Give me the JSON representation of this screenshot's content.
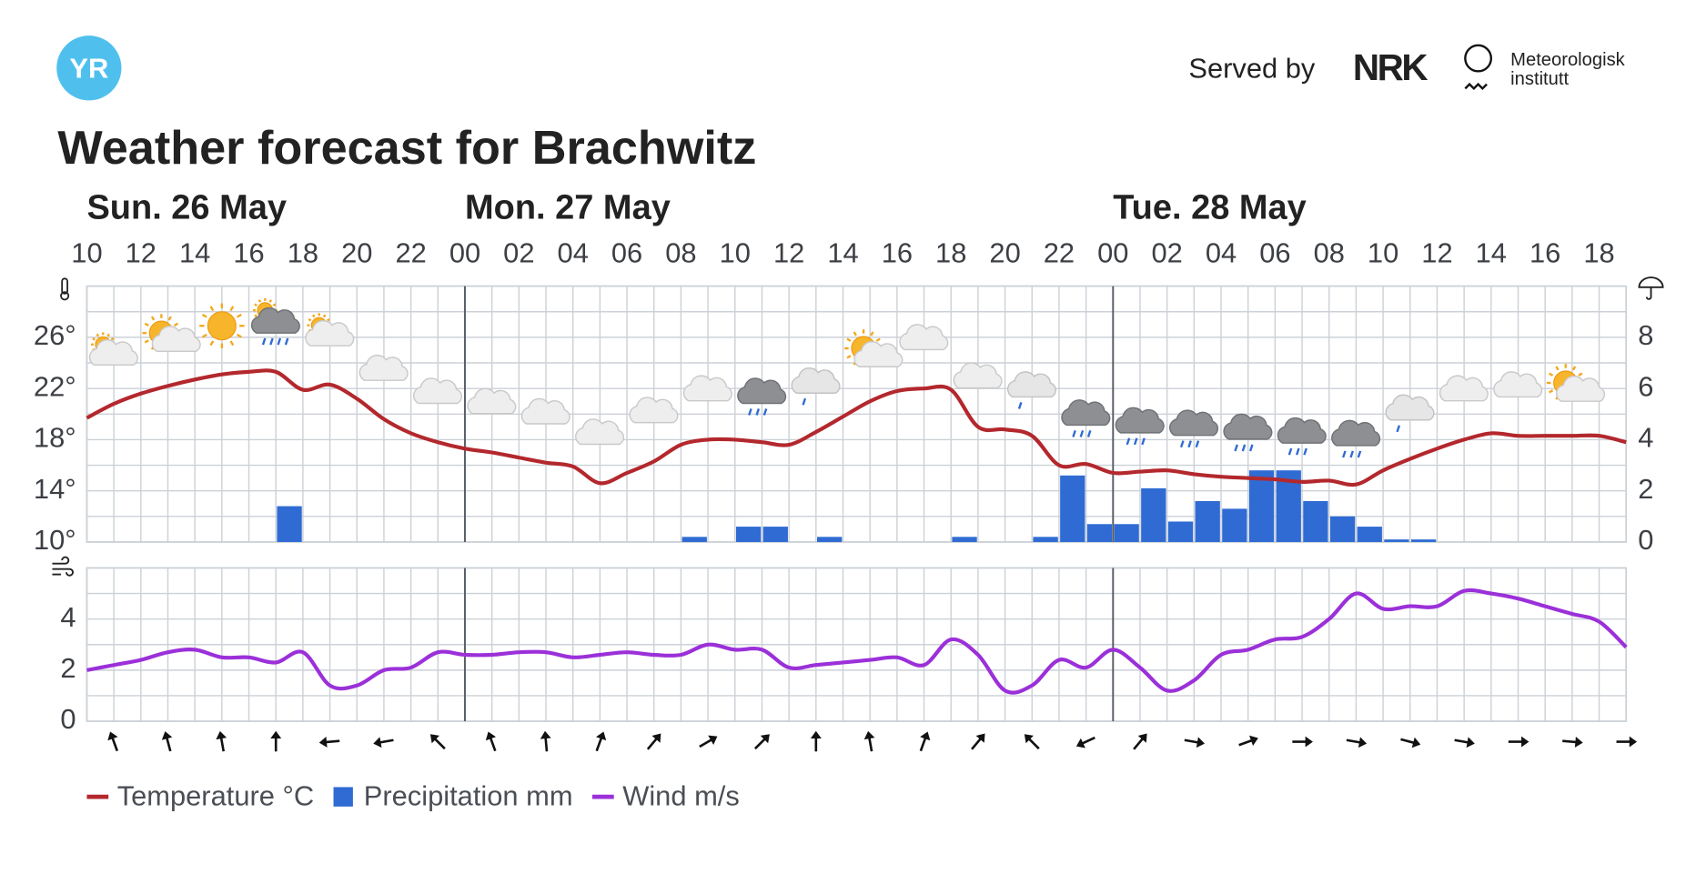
{
  "header": {
    "logo": "YR",
    "served_by": "Served by",
    "nrk": "NRK",
    "met": [
      "Meteorologisk",
      "institutt"
    ]
  },
  "chart_data": [
    {
      "type": "line",
      "title": "Weather forecast for Brachwitz",
      "days": [
        {
          "label": "Sun. 26 May",
          "index": 0
        },
        {
          "label": "Mon. 27 May",
          "index": 14
        },
        {
          "label": "Tue. 28 May",
          "index": 38
        }
      ],
      "categories": [
        "10",
        null,
        "12",
        null,
        "14",
        null,
        "16",
        null,
        "18",
        null,
        "20",
        null,
        "22",
        null,
        "00",
        null,
        "02",
        null,
        "04",
        null,
        "06",
        null,
        "08",
        null,
        "10",
        null,
        "12",
        null,
        "14",
        null,
        "16",
        null,
        "18",
        null,
        "20",
        null,
        "22",
        null,
        "00",
        null,
        "02",
        null,
        "04",
        null,
        "06",
        null,
        "08",
        null,
        "10",
        null,
        "12",
        null,
        "14",
        null,
        "16",
        null,
        "18",
        null
      ],
      "series": [
        {
          "name": "Temperature °C",
          "color": "#b3282d",
          "axis": "y",
          "values": [
            19.7,
            20.8,
            21.6,
            22.2,
            22.7,
            23.1,
            23.3,
            23.3,
            21.9,
            22.3,
            21.2,
            19.6,
            18.5,
            17.8,
            17.3,
            17.0,
            16.6,
            16.2,
            15.9,
            14.6,
            15.4,
            16.3,
            17.6,
            18.0,
            18.0,
            17.8,
            17.6,
            18.6,
            19.8,
            21.0,
            21.8,
            22.0,
            21.9,
            19.0,
            18.8,
            18.3,
            16.0,
            16.1,
            15.4,
            15.5,
            15.6,
            15.3,
            15.1,
            15.0,
            14.9,
            14.7,
            14.8,
            14.5,
            15.6,
            16.5,
            17.3,
            18.0,
            18.5,
            18.3,
            18.3,
            18.3,
            18.3,
            17.8
          ]
        },
        {
          "name": "Precipitation mm",
          "color": "#2f6bd3",
          "axis": "y2",
          "type": "bar",
          "values": [
            0,
            0,
            0,
            0,
            0,
            0,
            0,
            1.4,
            0,
            0,
            0,
            0,
            0,
            0,
            0,
            0,
            0,
            0,
            0,
            0,
            0,
            0,
            0.2,
            0,
            0.6,
            0.6,
            0,
            0.2,
            0,
            0,
            0,
            0,
            0.2,
            0,
            0,
            0.2,
            2.6,
            0.7,
            0.7,
            2.1,
            0.8,
            1.6,
            1.3,
            2.8,
            2.8,
            1.6,
            1.0,
            0.6,
            0.1,
            0.1,
            0,
            0,
            0,
            0,
            0,
            0,
            0,
            null
          ]
        }
      ],
      "ylim": [
        10,
        30
      ],
      "yticks": [
        {
          "value": 10,
          "label": "10°"
        },
        {
          "value": 14,
          "label": "14°"
        },
        {
          "value": 18,
          "label": "18°"
        },
        {
          "value": 22,
          "label": "22°"
        },
        {
          "value": 26,
          "label": "26°"
        }
      ],
      "ygrid": [
        10,
        12,
        14,
        16,
        18,
        20,
        22,
        24,
        26,
        28,
        30
      ],
      "y2lim": [
        0,
        10
      ],
      "y2ticks": [
        0,
        2,
        4,
        6,
        8
      ],
      "grid": true
    },
    {
      "type": "line",
      "series": [
        {
          "name": "Wind m/s",
          "color": "#9b30d9",
          "values": [
            2.0,
            2.2,
            2.4,
            2.7,
            2.8,
            2.5,
            2.5,
            2.3,
            2.7,
            1.4,
            1.4,
            2.0,
            2.1,
            2.7,
            2.6,
            2.6,
            2.7,
            2.7,
            2.5,
            2.6,
            2.7,
            2.6,
            2.6,
            3.0,
            2.8,
            2.8,
            2.1,
            2.2,
            2.3,
            2.4,
            2.5,
            2.2,
            3.2,
            2.6,
            1.2,
            1.4,
            2.4,
            2.1,
            2.8,
            2.1,
            1.2,
            1.6,
            2.6,
            2.8,
            3.2,
            3.3,
            4.0,
            5.0,
            4.4,
            4.5,
            4.5,
            5.1,
            5.0,
            4.8,
            4.5,
            4.2,
            3.9,
            2.9
          ]
        }
      ],
      "wind_direction": [
        null,
        340,
        null,
        345,
        null,
        350,
        null,
        0,
        null,
        265,
        null,
        260,
        null,
        315,
        null,
        340,
        null,
        355,
        null,
        20,
        null,
        40,
        null,
        60,
        null,
        45,
        null,
        0,
        null,
        350,
        null,
        20,
        null,
        40,
        null,
        315,
        null,
        245,
        null,
        40,
        null,
        100,
        null,
        70,
        null,
        90,
        null,
        100,
        null,
        105,
        null,
        100,
        null,
        90,
        null,
        95,
        null,
        90
      ],
      "ylim": [
        0,
        6
      ],
      "yticks": [
        0,
        2,
        4
      ],
      "ygrid": [
        0,
        1,
        2,
        3,
        4,
        5,
        6
      ],
      "grid": true
    }
  ]
}
